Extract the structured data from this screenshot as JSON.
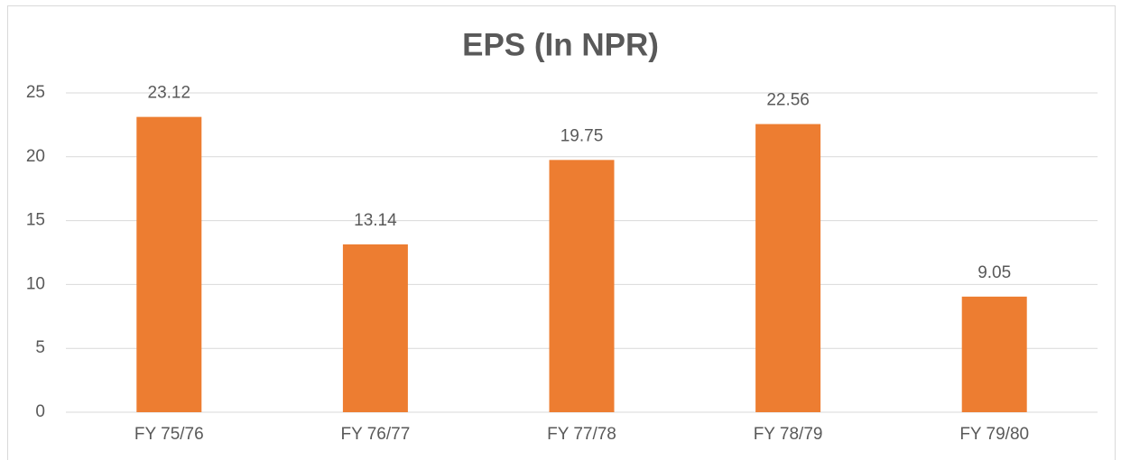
{
  "chart_data": {
    "type": "bar",
    "title": "EPS (In NPR)",
    "categories": [
      "FY 75/76",
      "FY 76/77",
      "FY 77/78",
      "FY 78/79",
      "FY 79/80"
    ],
    "values": [
      23.12,
      13.14,
      19.75,
      22.56,
      9.05
    ],
    "color": "#ed7d31",
    "ylim": [
      0,
      25
    ],
    "yticks": [
      0,
      5,
      10,
      15,
      20,
      25
    ],
    "grid": true
  }
}
